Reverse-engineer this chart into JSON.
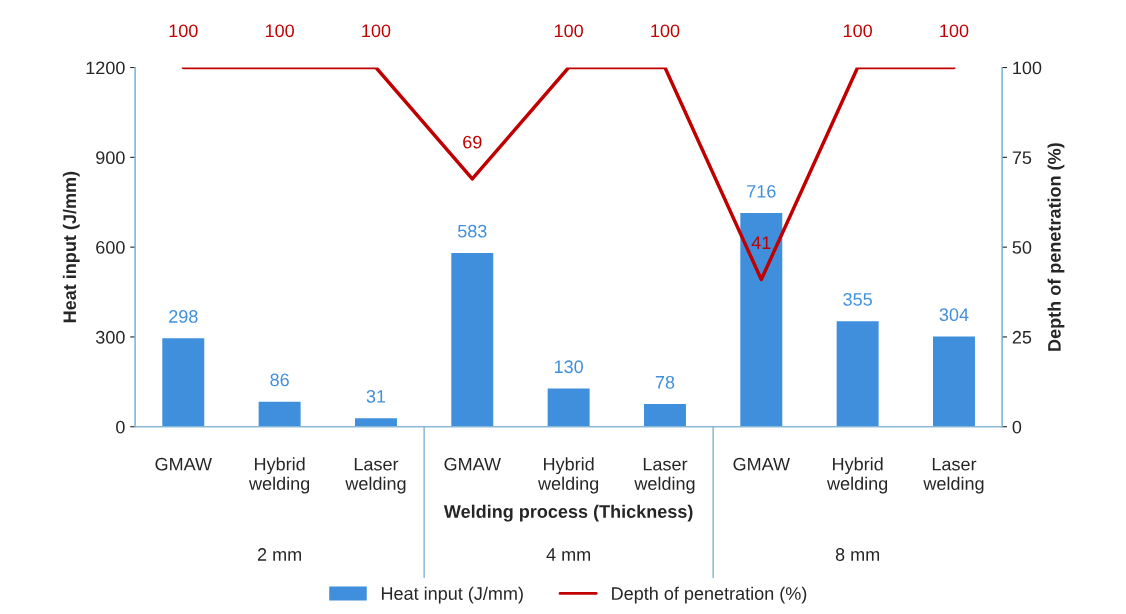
{
  "chart_data": {
    "type": "bar",
    "xlabel": "Welding process (Thickness)",
    "ylabel": "Heat input (J/mm)",
    "y2label": "Depth of penetration (%)",
    "categories": [
      "GMAW",
      "Hybrid welding",
      "Laser welding",
      "GMAW",
      "Hybrid welding",
      "Laser welding",
      "GMAW",
      "Hybrid welding",
      "Laser welding"
    ],
    "series": [
      {
        "name": "Heat input (J/mm)",
        "color": "#3f8fdc",
        "values": [
          298,
          86,
          31,
          583,
          130,
          78,
          716,
          355,
          304
        ]
      },
      {
        "name": "Depth of penetration (%)",
        "type": "line",
        "axis": "y2",
        "color": "#c00000",
        "values": [
          100,
          100,
          100,
          69,
          100,
          100,
          41,
          100,
          100
        ]
      }
    ],
    "annotations": [
      "2 mm",
      "4 mm",
      "8 mm"
    ],
    "ylim": [
      0,
      1200
    ],
    "yticks": [
      0,
      300,
      600,
      900,
      1200
    ],
    "y2lim": [
      0,
      100
    ],
    "y2ticks": [
      0,
      25,
      50,
      75,
      100
    ],
    "data_labels": true,
    "grid": false,
    "legend": "bottom",
    "marker": "none",
    "line_style": "solid"
  }
}
